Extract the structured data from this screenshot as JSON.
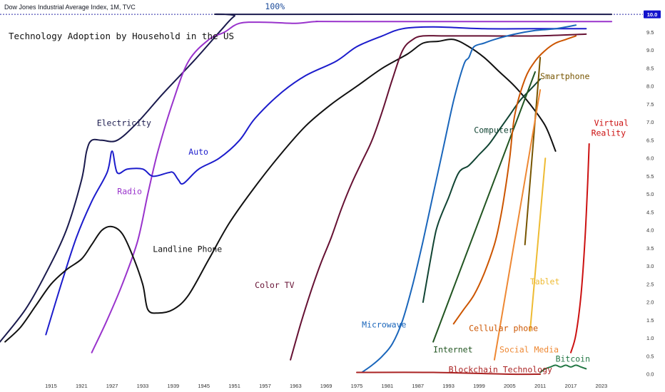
{
  "header": {
    "symbol_line": "Dow Jones Industrial Average Index, 1M, TVC"
  },
  "chart_data": {
    "type": "line",
    "title": "Technology Adoption by Household in the US",
    "xlabel": "",
    "ylabel": "",
    "x_ticks": [
      1915,
      1921,
      1927,
      1933,
      1939,
      1945,
      1951,
      1957,
      1963,
      1969,
      1975,
      1981,
      1987,
      1993,
      1999,
      2005,
      2011,
      2017,
      2023
    ],
    "y_ticks": [
      0.0,
      0.5,
      1.0,
      1.5,
      2.0,
      2.5,
      3.0,
      3.5,
      4.0,
      4.5,
      5.0,
      5.5,
      6.0,
      6.5,
      7.0,
      7.5,
      8.0,
      8.5,
      9.0,
      9.5,
      10.0
    ],
    "xlim": [
      1905,
      2031
    ],
    "ylim": [
      0,
      10.2
    ],
    "price_label": "10.0",
    "hundred_label": "100%",
    "hundred_value": 10.0,
    "series": [
      {
        "name": "Electricity",
        "label_at": [
          1924,
          6.9
        ],
        "color": "#1a1a4d",
        "x": [
          1905,
          1910,
          1914,
          1918,
          1921,
          1922,
          1923,
          1925,
          1928,
          1932,
          1937,
          1943,
          1948,
          1951,
          1953,
          2025
        ],
        "y": [
          0.9,
          1.8,
          2.8,
          4.0,
          5.4,
          6.2,
          6.5,
          6.5,
          6.5,
          7.0,
          7.8,
          8.7,
          9.5,
          9.95,
          10.0,
          10.0
        ]
      },
      {
        "name": "Radio",
        "label_at": [
          1928,
          5.0
        ],
        "color": "#9933cc",
        "x": [
          1923,
          1926,
          1929,
          1932,
          1934,
          1936,
          1939,
          1942,
          1946,
          1949,
          1952,
          1957,
          1963,
          1967,
          1973,
          2025
        ],
        "y": [
          0.6,
          1.5,
          2.5,
          3.7,
          5.0,
          6.2,
          7.6,
          8.7,
          9.3,
          9.5,
          9.75,
          9.78,
          9.75,
          9.8,
          9.8,
          9.8
        ]
      },
      {
        "name": "Auto",
        "label_at": [
          1942,
          6.1
        ],
        "color": "#1c1ccc",
        "x": [
          1914,
          1917,
          1920,
          1923,
          1926,
          1927,
          1928,
          1930,
          1933,
          1935,
          1938,
          1939,
          1940,
          1941,
          1944,
          1948,
          1952,
          1955,
          1960,
          1965,
          1971,
          1975,
          1980,
          1984,
          1990,
          2000,
          2010,
          2020
        ],
        "y": [
          1.1,
          2.5,
          3.8,
          4.8,
          5.6,
          6.2,
          5.6,
          5.7,
          5.7,
          5.5,
          5.6,
          5.6,
          5.4,
          5.3,
          5.7,
          6.0,
          6.5,
          7.1,
          7.8,
          8.3,
          8.7,
          9.1,
          9.4,
          9.6,
          9.65,
          9.6,
          9.6,
          9.6
        ]
      },
      {
        "name": "Landline Phone",
        "label_at": [
          1935,
          3.4
        ],
        "color": "#111111",
        "x": [
          1906,
          1909,
          1912,
          1915,
          1918,
          1921,
          1923,
          1925,
          1927,
          1929,
          1931,
          1933,
          1934,
          1936,
          1939,
          1942,
          1946,
          1950,
          1955,
          1960,
          1965,
          1970,
          1975,
          1980,
          1985,
          1988,
          1991,
          1994,
          1997,
          2000,
          2003,
          2006,
          2009,
          2012,
          2014
        ],
        "y": [
          0.9,
          1.3,
          1.9,
          2.5,
          2.9,
          3.2,
          3.6,
          4.0,
          4.1,
          3.9,
          3.3,
          2.5,
          1.8,
          1.7,
          1.8,
          2.2,
          3.2,
          4.2,
          5.2,
          6.1,
          6.9,
          7.5,
          8.0,
          8.5,
          8.9,
          9.2,
          9.25,
          9.3,
          9.1,
          8.8,
          8.4,
          8.0,
          7.5,
          6.9,
          6.2
        ]
      },
      {
        "name": "Color TV",
        "label_at": [
          1955,
          2.4
        ],
        "color": "#661133",
        "x": [
          1962,
          1964,
          1966,
          1968,
          1970,
          1972,
          1974,
          1976,
          1978,
          1980,
          1982,
          1984,
          1986,
          1988,
          1992,
          2000,
          2010,
          2020
        ],
        "y": [
          0.4,
          1.4,
          2.3,
          3.1,
          3.8,
          4.6,
          5.3,
          5.9,
          6.5,
          7.3,
          8.2,
          9.0,
          9.3,
          9.4,
          9.4,
          9.4,
          9.4,
          9.45
        ]
      },
      {
        "name": "Microwave",
        "label_at": [
          1976,
          1.3
        ],
        "color": "#1a66bb",
        "x": [
          1976,
          1978,
          1980,
          1982,
          1984,
          1986,
          1988,
          1990,
          1992,
          1994,
          1996,
          1997,
          1998,
          2000,
          2002,
          2006,
          2010,
          2014,
          2018
        ],
        "y": [
          0.05,
          0.25,
          0.5,
          0.85,
          1.5,
          2.5,
          3.7,
          5.0,
          6.3,
          7.6,
          8.6,
          8.8,
          9.1,
          9.2,
          9.3,
          9.45,
          9.55,
          9.6,
          9.7
        ]
      },
      {
        "name": "Computer",
        "label_at": [
          1998,
          6.7
        ],
        "color": "#114433",
        "x": [
          1988,
          1990,
          1991,
          1993,
          1995,
          1997,
          1999,
          2001,
          2003,
          2005,
          2007,
          2009,
          2011
        ],
        "y": [
          2.0,
          3.6,
          4.2,
          4.9,
          5.6,
          5.8,
          6.1,
          6.4,
          6.8,
          7.2,
          7.6,
          7.9,
          8.2
        ]
      },
      {
        "name": "Internet",
        "label_at": [
          1990,
          0.6
        ],
        "color": "#225522",
        "x": [
          1990,
          2010
        ],
        "y": [
          0.9,
          8.4
        ]
      },
      {
        "name": "Cellular phone",
        "label_at": [
          1997,
          1.2
        ],
        "color": "#cc5500",
        "x": [
          1994,
          1996,
          1998,
          2000,
          2002,
          2003,
          2004,
          2005,
          2006,
          2008,
          2010,
          2012,
          2014,
          2016,
          2018
        ],
        "y": [
          1.4,
          1.8,
          2.2,
          2.8,
          3.6,
          4.2,
          5.0,
          6.0,
          7.2,
          8.2,
          8.7,
          9.0,
          9.2,
          9.3,
          9.4
        ]
      },
      {
        "name": "Smartphone",
        "label_at": [
          2011,
          8.2
        ],
        "color": "#775500",
        "x": [
          2008,
          2011
        ],
        "y": [
          3.6,
          8.8
        ]
      },
      {
        "name": "Social Media",
        "label_at": [
          2003,
          0.6
        ],
        "color": "#ee8833",
        "x": [
          2002,
          2011
        ],
        "y": [
          0.4,
          7.9
        ]
      },
      {
        "name": "Tablet",
        "label_at": [
          2009,
          2.5
        ],
        "color": "#eebb33",
        "x": [
          2009,
          2012
        ],
        "y": [
          1.2,
          6.0
        ]
      },
      {
        "name": "Virtual Reality",
        "label_at": [
          2021,
          6.9
        ],
        "color": "#cc1111",
        "x": [
          2017,
          2018,
          2019,
          2019.8,
          2020.3,
          2020.6
        ],
        "y": [
          0.6,
          1.1,
          2.2,
          3.8,
          5.3,
          6.4
        ]
      },
      {
        "name": "Blockchain Technology",
        "label_at": [
          1993,
          0.05
        ],
        "color": "#aa2222",
        "x": [
          1975,
          1990,
          2005,
          2011
        ],
        "y": [
          0.05,
          0.05,
          0.0,
          0.0
        ]
      },
      {
        "name": "Bitcoin",
        "label_at": [
          2014,
          0.35
        ],
        "color": "#227744",
        "x": [
          2011,
          2012,
          2013,
          2014,
          2015,
          2016,
          2017,
          2018,
          2019,
          2020
        ],
        "y": [
          0.05,
          0.15,
          0.2,
          0.25,
          0.2,
          0.25,
          0.2,
          0.25,
          0.2,
          0.15
        ]
      }
    ]
  }
}
